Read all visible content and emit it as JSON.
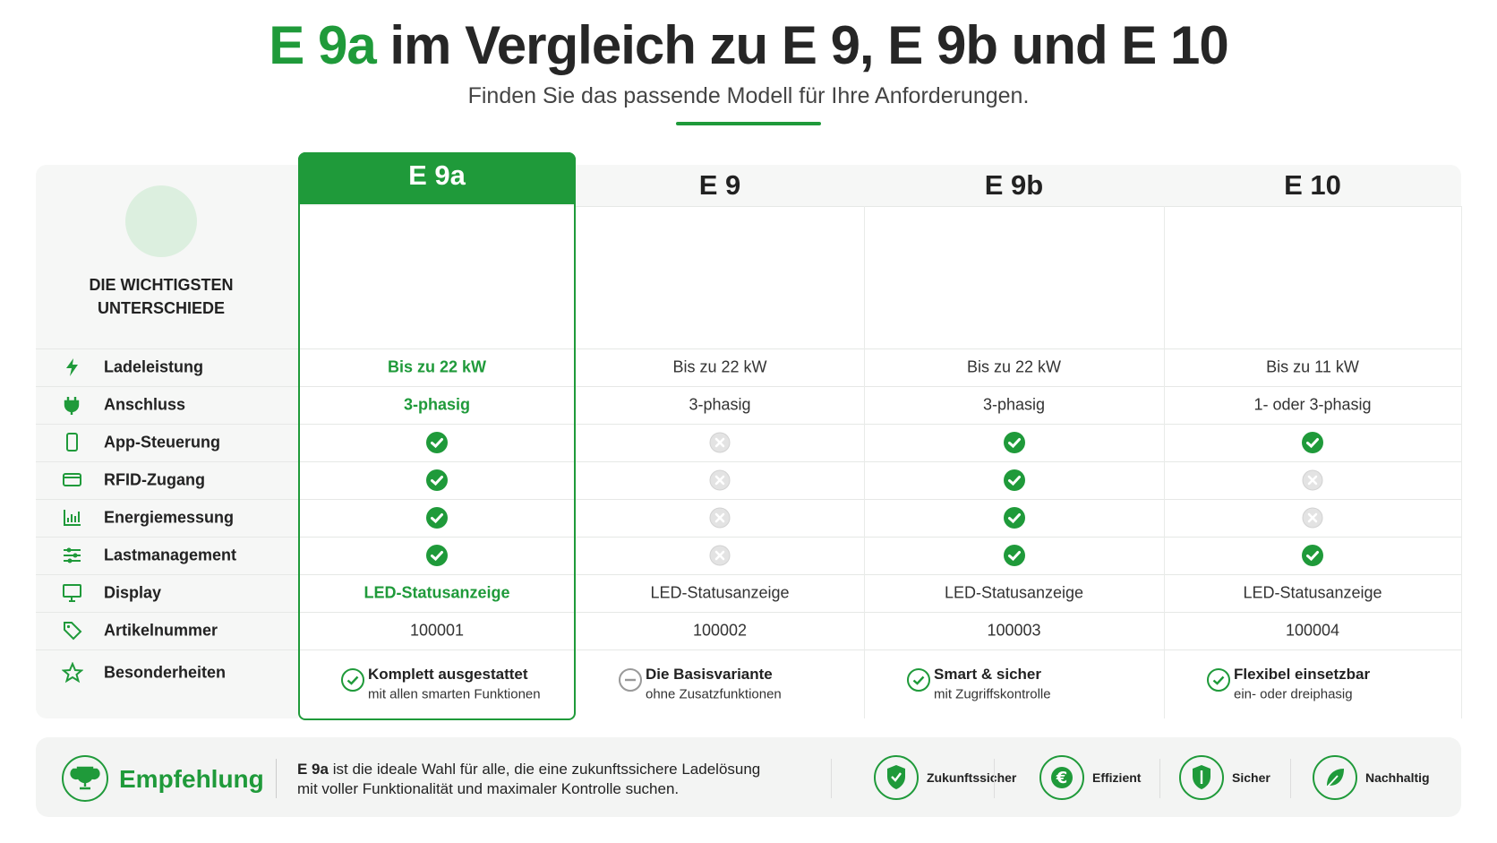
{
  "header": {
    "title_highlight": "E 9a",
    "title": "im Vergleich zu E 9, E 9b und E 10",
    "subtitle": "Finden Sie das passende Modell für Ihre Anforderungen."
  },
  "table": {
    "corner_label": [
      "DIE WICHTIGSTEN",
      "UNTERSCHIEDE"
    ],
    "columns": [
      "E 9a",
      "E 9",
      "E 9b",
      "E 10"
    ],
    "rows": [
      {
        "label": "Ladeleistung",
        "cells": [
          "Bis zu 22 kW",
          "Bis zu 22 kW",
          "Bis zu 22 kW",
          "Bis zu 11 kW"
        ]
      },
      {
        "label": "Anschluss",
        "cells": [
          "3-phasig",
          "3-phasig",
          "3-phasig",
          "1- oder 3-phasig"
        ]
      },
      {
        "label": "App-Steuerung",
        "cells": [
          true,
          false,
          true,
          true
        ]
      },
      {
        "label": "RFID-Zugang",
        "cells": [
          true,
          false,
          true,
          false
        ]
      },
      {
        "label": "Energiemessung",
        "cells": [
          true,
          false,
          true,
          false
        ]
      },
      {
        "label": "Lastmanagement",
        "cells": [
          true,
          false,
          true,
          true
        ]
      },
      {
        "label": "Display",
        "cells": [
          "LED-Statusanzeige",
          "LED-Statusanzeige",
          "LED-Statusanzeige",
          "LED-Statusanzeige"
        ]
      },
      {
        "label": "Artikelnummer",
        "cells": [
          "100001",
          "100002",
          "100003",
          "100004"
        ]
      }
    ],
    "special": {
      "label": "Besonderheiten",
      "cells": [
        {
          "title": "Komplett ausgestattet",
          "text": "mit allen smarten Funktionen"
        },
        {
          "title": "Die Basisvariante",
          "text": "ohne Zusatzfunktionen"
        },
        {
          "title": "Smart & sicher",
          "text": "mit Zugriffskontrolle"
        },
        {
          "title": "Flexibel einsetzbar",
          "text": "ein- oder dreiphasig"
        }
      ]
    }
  },
  "recommendation": {
    "title": "Empfehlung",
    "model": "E 9a",
    "lines": [
      "ist die ideale Wahl für alle, die eine zukunftssichere Ladelösung",
      "mit voller Funktionalität und maximaler Kontrolle suchen."
    ]
  },
  "badges": [
    "Zukunftssicher",
    "Effizient",
    "Sicher",
    "Nachhaltig"
  ]
}
